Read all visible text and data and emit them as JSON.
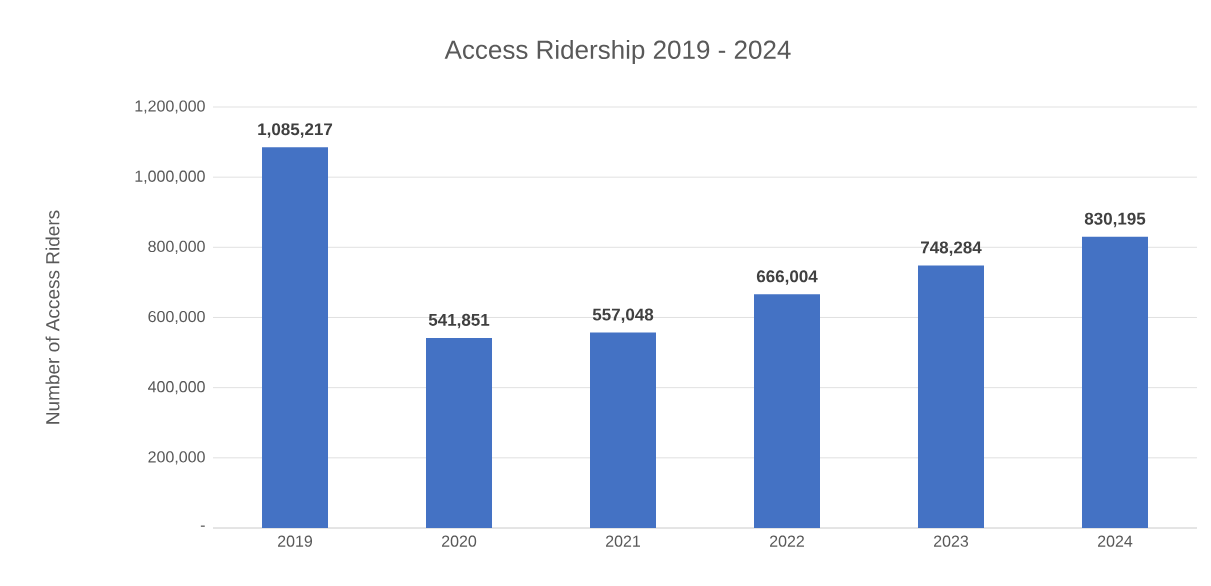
{
  "chart_data": {
    "type": "bar",
    "title": "Access Ridership 2019 - 2024",
    "ylabel": "Number of Access Riders",
    "categories": [
      "2019",
      "2020",
      "2021",
      "2022",
      "2023",
      "2024"
    ],
    "values": [
      1085217,
      541851,
      557048,
      666004,
      748284,
      830195
    ],
    "value_labels": [
      "1,085,217",
      "541,851",
      "557,048",
      "666,004",
      "748,284",
      "830,195"
    ],
    "color": "#4472c4",
    "ylim": [
      0,
      1200000
    ],
    "yticks": [
      {
        "value": 0,
        "label": "-"
      },
      {
        "value": 200000,
        "label": "200,000"
      },
      {
        "value": 400000,
        "label": "400,000"
      },
      {
        "value": 600000,
        "label": "600,000"
      },
      {
        "value": 800000,
        "label": "800,000"
      },
      {
        "value": 1000000,
        "label": "1,000,000"
      },
      {
        "value": 1200000,
        "label": "1,200,000"
      }
    ],
    "grid": "y"
  }
}
